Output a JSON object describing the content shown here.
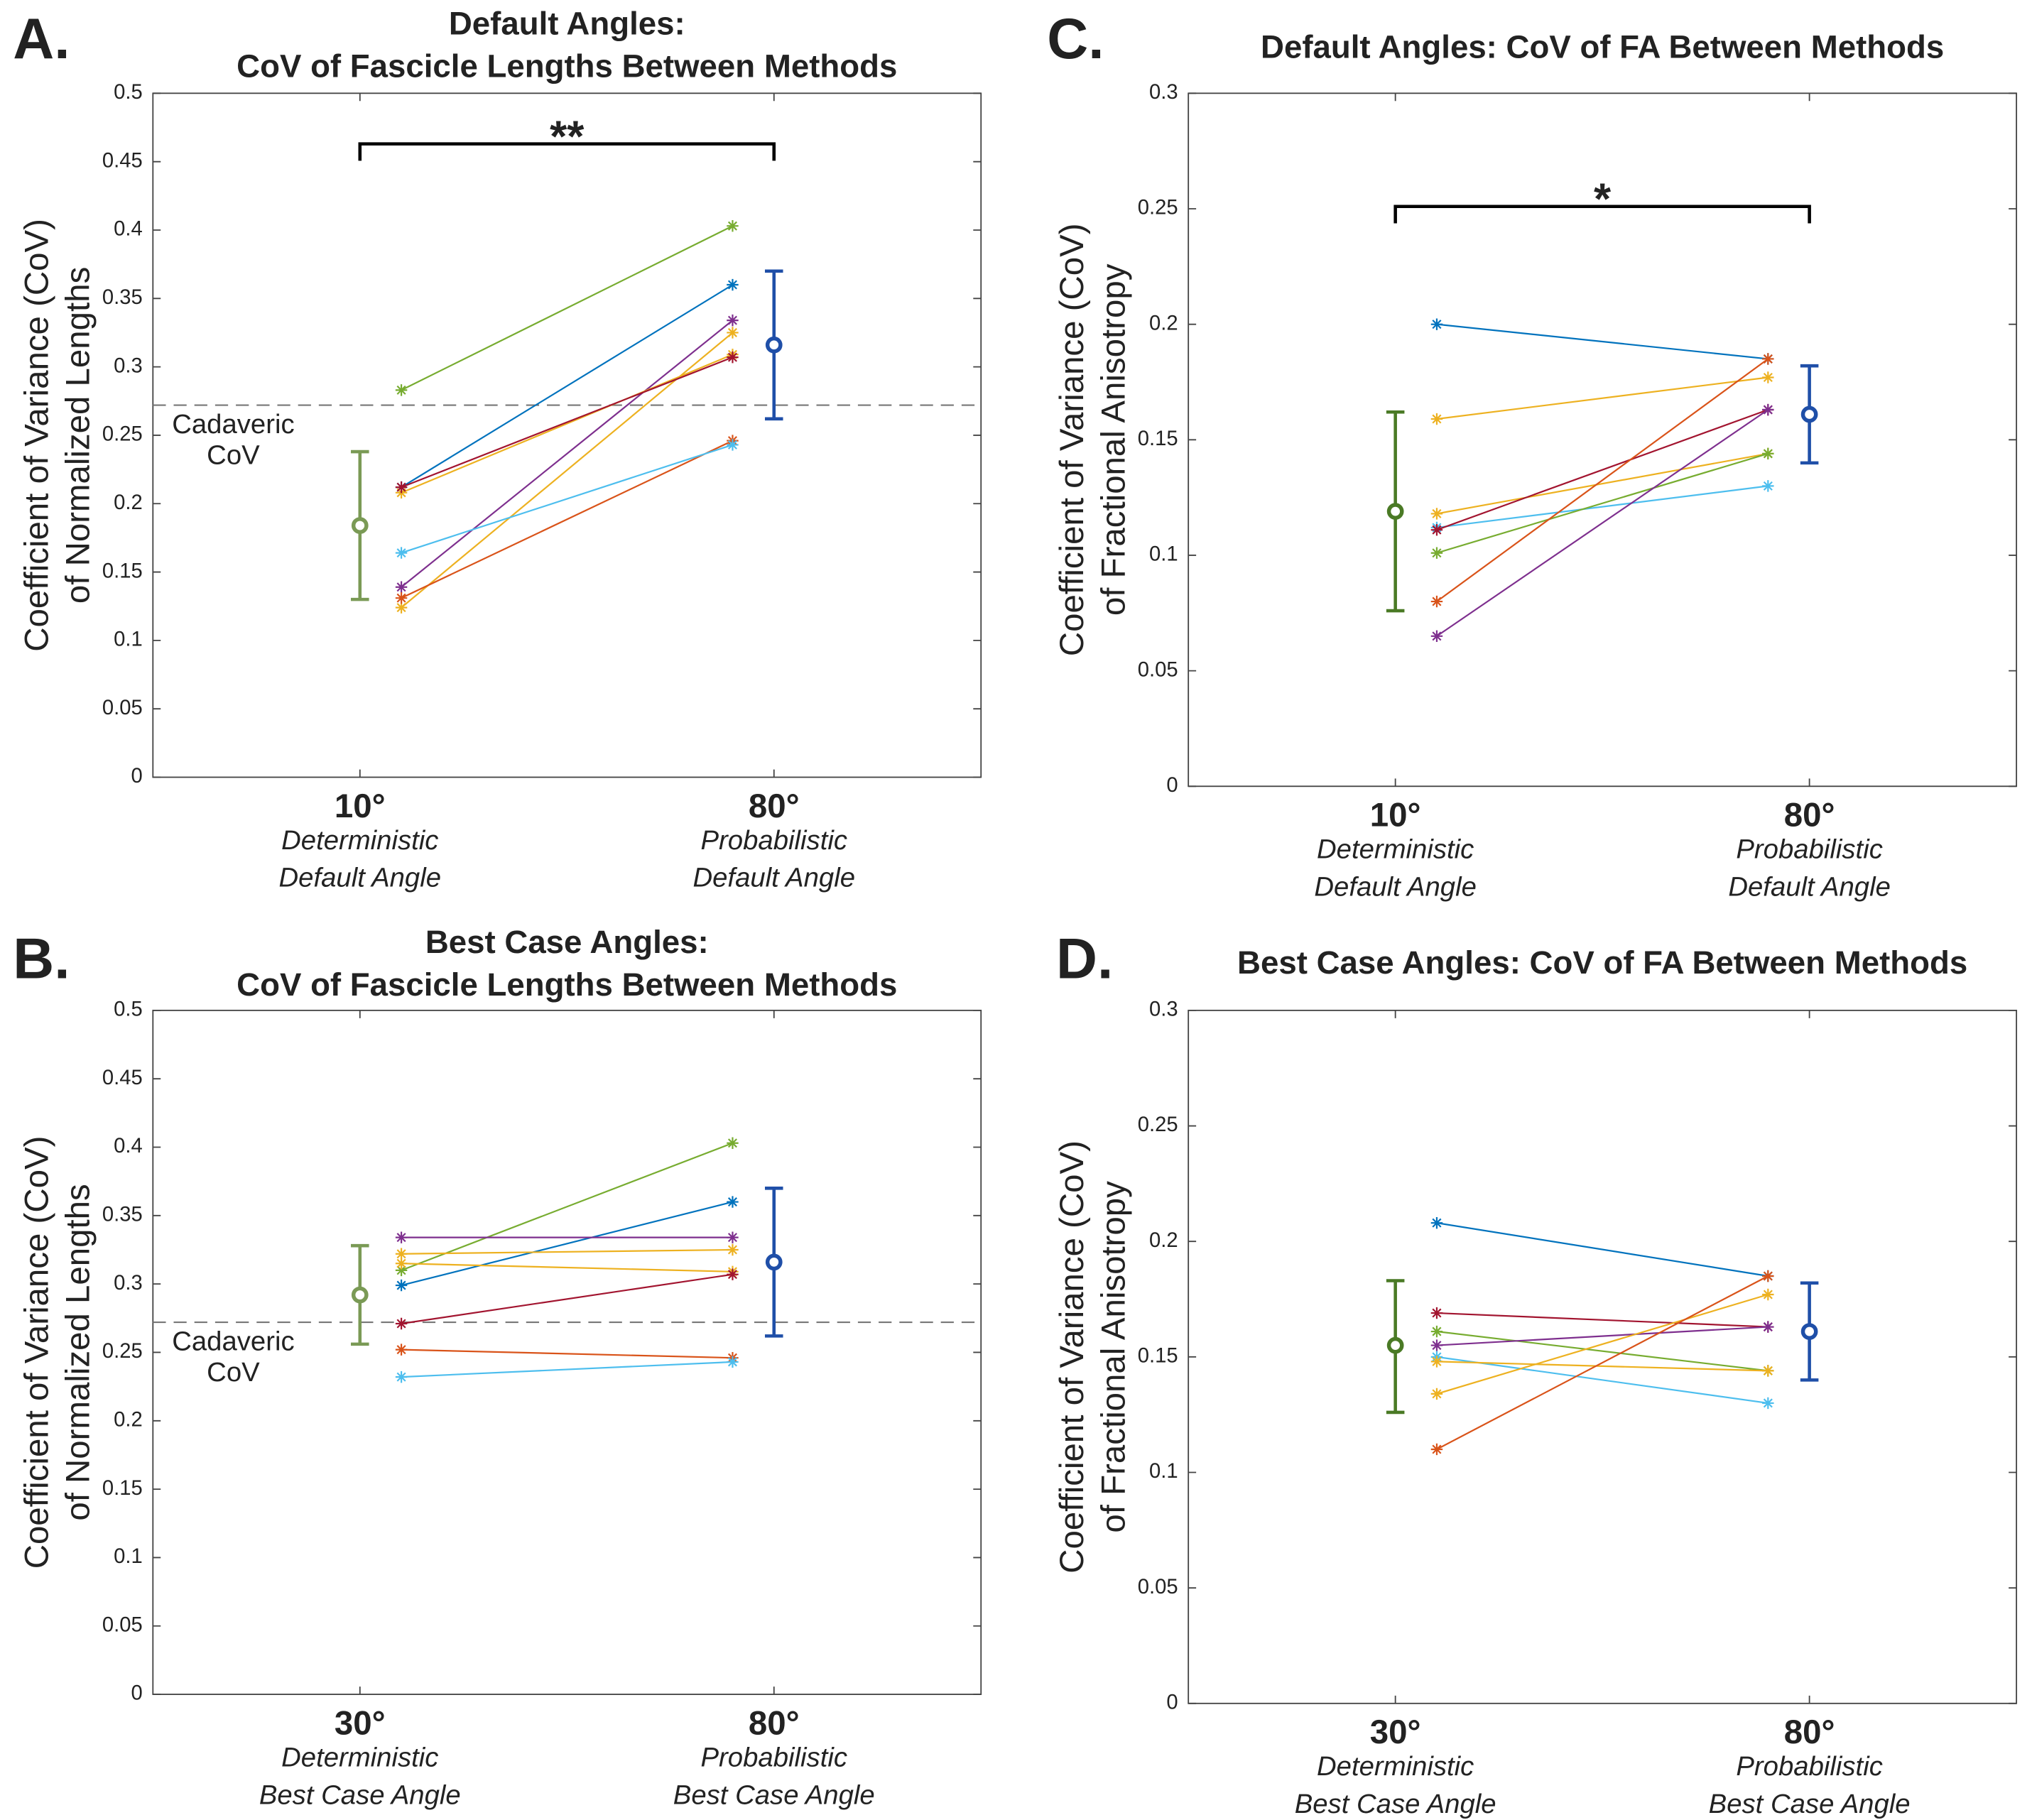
{
  "chart_data": [
    {
      "type": "line",
      "panel_label": "A.",
      "title": [
        "Default Angles:",
        "CoV of Fascicle Lengths Between Methods"
      ],
      "ylabel": [
        "Coefficient of Variance (CoV)",
        "of Normalized Lengths"
      ],
      "categories": [
        "10°",
        "80°"
      ],
      "category_subtitles": [
        [
          "Deterministic",
          "Default Angle"
        ],
        [
          "Probabilistic",
          "Default Angle"
        ]
      ],
      "ylim": [
        0,
        0.5
      ],
      "yticks": [
        0,
        0.05,
        0.1,
        0.15,
        0.2,
        0.25,
        0.3,
        0.35,
        0.4,
        0.45,
        0.5
      ],
      "series": [
        {
          "color": "#77AC30",
          "values": [
            0.283,
            0.403
          ]
        },
        {
          "color": "#0072BD",
          "values": [
            0.212,
            0.36
          ]
        },
        {
          "color": "#7E2F8E",
          "values": [
            0.139,
            0.334
          ]
        },
        {
          "color": "#EDB120",
          "values": [
            0.124,
            0.325
          ]
        },
        {
          "color": "#EDB120",
          "values": [
            0.208,
            0.309
          ]
        },
        {
          "color": "#A2142F",
          "values": [
            0.212,
            0.307
          ]
        },
        {
          "color": "#D95319",
          "values": [
            0.131,
            0.246
          ]
        },
        {
          "color": "#4DBEEE",
          "values": [
            0.164,
            0.243
          ]
        }
      ],
      "means": {
        "values": [
          0.184,
          0.316
        ],
        "lower": [
          0.13,
          0.262
        ],
        "upper": [
          0.238,
          0.37
        ],
        "colors": [
          "#7a9a55",
          "#1f4fa8"
        ]
      },
      "reference_line": {
        "label": [
          "Cadaveric",
          "CoV"
        ],
        "value": 0.272
      },
      "significance": {
        "label": "**",
        "y": 0.463
      }
    },
    {
      "type": "line",
      "panel_label": "B.",
      "title": [
        "Best Case Angles:",
        "CoV of Fascicle Lengths Between Methods"
      ],
      "ylabel": [
        "Coefficient of Variance (CoV)",
        "of Normalized Lengths"
      ],
      "categories": [
        "30°",
        "80°"
      ],
      "category_subtitles": [
        [
          "Deterministic",
          "Best Case Angle"
        ],
        [
          "Probabilistic",
          "Best Case Angle"
        ]
      ],
      "ylim": [
        0,
        0.5
      ],
      "yticks": [
        0,
        0.05,
        0.1,
        0.15,
        0.2,
        0.25,
        0.3,
        0.35,
        0.4,
        0.45,
        0.5
      ],
      "series": [
        {
          "color": "#77AC30",
          "values": [
            0.31,
            0.403
          ]
        },
        {
          "color": "#0072BD",
          "values": [
            0.299,
            0.36
          ]
        },
        {
          "color": "#7E2F8E",
          "values": [
            0.334,
            0.334
          ]
        },
        {
          "color": "#EDB120",
          "values": [
            0.322,
            0.325
          ]
        },
        {
          "color": "#EDB120",
          "values": [
            0.315,
            0.309
          ]
        },
        {
          "color": "#A2142F",
          "values": [
            0.271,
            0.307
          ]
        },
        {
          "color": "#D95319",
          "values": [
            0.252,
            0.246
          ]
        },
        {
          "color": "#4DBEEE",
          "values": [
            0.232,
            0.243
          ]
        }
      ],
      "means": {
        "values": [
          0.292,
          0.316
        ],
        "lower": [
          0.256,
          0.262
        ],
        "upper": [
          0.328,
          0.37
        ],
        "colors": [
          "#7a9a55",
          "#1f4fa8"
        ]
      },
      "reference_line": {
        "label": [
          "Cadaveric",
          "CoV"
        ],
        "value": 0.272
      }
    },
    {
      "type": "line",
      "panel_label": "C.",
      "title": [
        "Default Angles: CoV of FA Between Methods"
      ],
      "ylabel": [
        "Coefficient of Variance (CoV)",
        "of Fractional Anisotropy"
      ],
      "categories": [
        "10°",
        "80°"
      ],
      "category_subtitles": [
        [
          "Deterministic",
          "Default Angle"
        ],
        [
          "Probabilistic",
          "Default Angle"
        ]
      ],
      "ylim": [
        0,
        0.3
      ],
      "yticks": [
        0,
        0.05,
        0.1,
        0.15,
        0.2,
        0.25,
        0.3
      ],
      "series": [
        {
          "color": "#0072BD",
          "values": [
            0.2,
            0.185
          ]
        },
        {
          "color": "#EDB120",
          "values": [
            0.159,
            0.177
          ]
        },
        {
          "color": "#EDB120",
          "values": [
            0.118,
            0.144
          ]
        },
        {
          "color": "#4DBEEE",
          "values": [
            0.112,
            0.13
          ]
        },
        {
          "color": "#A2142F",
          "values": [
            0.111,
            0.163
          ]
        },
        {
          "color": "#77AC30",
          "values": [
            0.101,
            0.144
          ]
        },
        {
          "color": "#D95319",
          "values": [
            0.08,
            0.185
          ]
        },
        {
          "color": "#7E2F8E",
          "values": [
            0.065,
            0.163
          ]
        }
      ],
      "means": {
        "values": [
          0.119,
          0.161
        ],
        "lower": [
          0.076,
          0.14
        ],
        "upper": [
          0.162,
          0.182
        ],
        "colors": [
          "#4a7a25",
          "#1f4fa8"
        ]
      },
      "significance": {
        "label": "*",
        "y": 0.251
      }
    },
    {
      "type": "line",
      "panel_label": "D.",
      "title": [
        "Best Case Angles: CoV of FA Between Methods"
      ],
      "ylabel": [
        "Coefficient of Variance (CoV)",
        "of Fractional Anisotropy"
      ],
      "categories": [
        "30°",
        "80°"
      ],
      "category_subtitles": [
        [
          "Deterministic",
          "Best Case Angle"
        ],
        [
          "Probabilistic",
          "Best Case Angle"
        ]
      ],
      "ylim": [
        0,
        0.3
      ],
      "yticks": [
        0,
        0.05,
        0.1,
        0.15,
        0.2,
        0.25,
        0.3
      ],
      "series": [
        {
          "color": "#0072BD",
          "values": [
            0.208,
            0.185
          ]
        },
        {
          "color": "#A2142F",
          "values": [
            0.169,
            0.163
          ]
        },
        {
          "color": "#77AC30",
          "values": [
            0.161,
            0.144
          ]
        },
        {
          "color": "#7E2F8E",
          "values": [
            0.155,
            0.163
          ]
        },
        {
          "color": "#4DBEEE",
          "values": [
            0.15,
            0.13
          ]
        },
        {
          "color": "#EDB120",
          "values": [
            0.148,
            0.144
          ]
        },
        {
          "color": "#EDB120",
          "values": [
            0.134,
            0.177
          ]
        },
        {
          "color": "#D95319",
          "values": [
            0.11,
            0.185
          ]
        }
      ],
      "means": {
        "values": [
          0.155,
          0.161
        ],
        "lower": [
          0.126,
          0.14
        ],
        "upper": [
          0.183,
          0.182
        ],
        "colors": [
          "#4a7a25",
          "#1f4fa8"
        ]
      }
    }
  ]
}
